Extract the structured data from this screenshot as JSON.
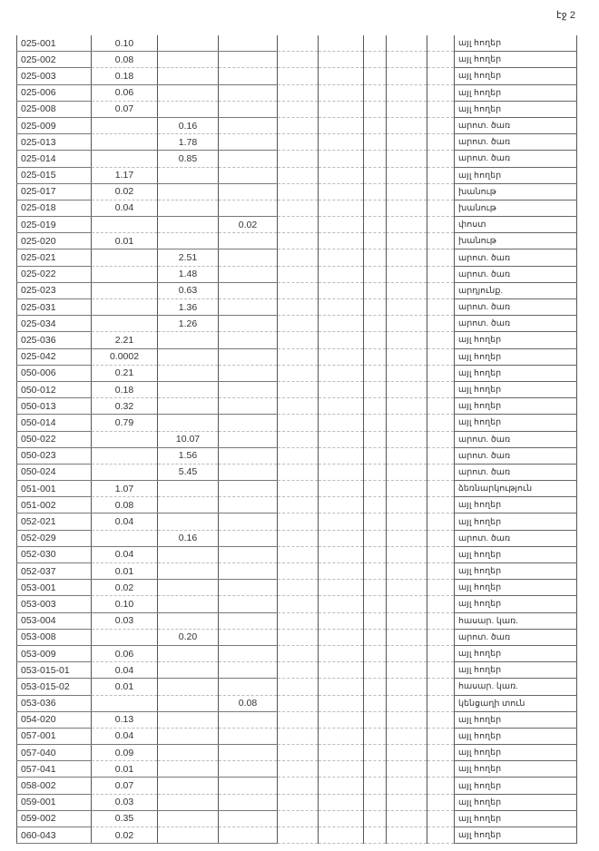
{
  "page_label": "էջ 2",
  "rows": [
    [
      "025-001",
      "0.10",
      "",
      "",
      "այլ հողեր"
    ],
    [
      "025-002",
      "0.08",
      "",
      "",
      "այլ հողեր"
    ],
    [
      "025-003",
      "0.18",
      "",
      "",
      "այլ հողեր"
    ],
    [
      "025-006",
      "0.06",
      "",
      "",
      "այլ հողեր"
    ],
    [
      "025-008",
      "0.07",
      "",
      "",
      "այլ հողեր"
    ],
    [
      "025-009",
      "",
      "0.16",
      "",
      "արոտ. ծառ"
    ],
    [
      "025-013",
      "",
      "1.78",
      "",
      "արոտ. ծառ"
    ],
    [
      "025-014",
      "",
      "0.85",
      "",
      "արոտ. ծառ"
    ],
    [
      "025-015",
      "1.17",
      "",
      "",
      "այլ հողեր"
    ],
    [
      "025-017",
      "0.02",
      "",
      "",
      "խանութ"
    ],
    [
      "025-018",
      "0.04",
      "",
      "",
      "խանութ"
    ],
    [
      "025-019",
      "",
      "",
      "0.02",
      "փոստ"
    ],
    [
      "025-020",
      "0.01",
      "",
      "",
      "խանութ"
    ],
    [
      "025-021",
      "",
      "2.51",
      "",
      "արոտ. ծառ"
    ],
    [
      "025-022",
      "",
      "1.48",
      "",
      "արոտ. ծառ"
    ],
    [
      "025-023",
      "",
      "0.63",
      "",
      "արդյունք."
    ],
    [
      "025-031",
      "",
      "1.36",
      "",
      "արոտ. ծառ"
    ],
    [
      "025-034",
      "",
      "1.26",
      "",
      "արոտ. ծառ"
    ],
    [
      "025-036",
      "2.21",
      "",
      "",
      "այլ հողեր"
    ],
    [
      "025-042",
      "0.0002",
      "",
      "",
      "այլ հողեր"
    ],
    [
      "050-006",
      "0.21",
      "",
      "",
      "այլ հողեր"
    ],
    [
      "050-012",
      "0.18",
      "",
      "",
      "այլ հողեր"
    ],
    [
      "050-013",
      "0.32",
      "",
      "",
      "այլ հողեր"
    ],
    [
      "050-014",
      "0.79",
      "",
      "",
      "այլ հողեր"
    ],
    [
      "050-022",
      "",
      "10.07",
      "",
      "արոտ. ծառ"
    ],
    [
      "050-023",
      "",
      "1.56",
      "",
      "արոտ. ծառ"
    ],
    [
      "050-024",
      "",
      "5.45",
      "",
      "արոտ. ծառ"
    ],
    [
      "051-001",
      "1.07",
      "",
      "",
      "ձեռնարկություն"
    ],
    [
      "051-002",
      "0.08",
      "",
      "",
      "այլ հողեր"
    ],
    [
      "052-021",
      "0.04",
      "",
      "",
      "այլ հողեր"
    ],
    [
      "052-029",
      "",
      "0.16",
      "",
      "արոտ. ծառ"
    ],
    [
      "052-030",
      "0.04",
      "",
      "",
      "այլ հողեր"
    ],
    [
      "052-037",
      "0.01",
      "",
      "",
      "այլ հողեր"
    ],
    [
      "053-001",
      "0.02",
      "",
      "",
      "այլ հողեր"
    ],
    [
      "053-003",
      "0.10",
      "",
      "",
      "այլ հողեր"
    ],
    [
      "053-004",
      "0.03",
      "",
      "",
      "հասար. կառ."
    ],
    [
      "053-008",
      "",
      "0.20",
      "",
      "արոտ. ծառ"
    ],
    [
      "053-009",
      "0.06",
      "",
      "",
      "այլ հողեր"
    ],
    [
      "053-015-01",
      "0.04",
      "",
      "",
      "այլ հողեր"
    ],
    [
      "053-015-02",
      "0.01",
      "",
      "",
      "հասար. կառ."
    ],
    [
      "053-036",
      "",
      "",
      "0.08",
      "կենցաղի տուն"
    ],
    [
      "054-020",
      "0.13",
      "",
      "",
      "այլ հողեր"
    ],
    [
      "057-001",
      "0.04",
      "",
      "",
      "այլ հողեր"
    ],
    [
      "057-040",
      "0.09",
      "",
      "",
      "այլ հողեր"
    ],
    [
      "057-041",
      "0.01",
      "",
      "",
      "այլ հողեր"
    ],
    [
      "058-002",
      "0.07",
      "",
      "",
      "այլ հողեր"
    ],
    [
      "059-001",
      "0.03",
      "",
      "",
      "այլ հողեր"
    ],
    [
      "059-002",
      "0.35",
      "",
      "",
      "այլ հողեր"
    ],
    [
      "060-043",
      "0.02",
      "",
      "",
      "այլ հողեր"
    ]
  ]
}
